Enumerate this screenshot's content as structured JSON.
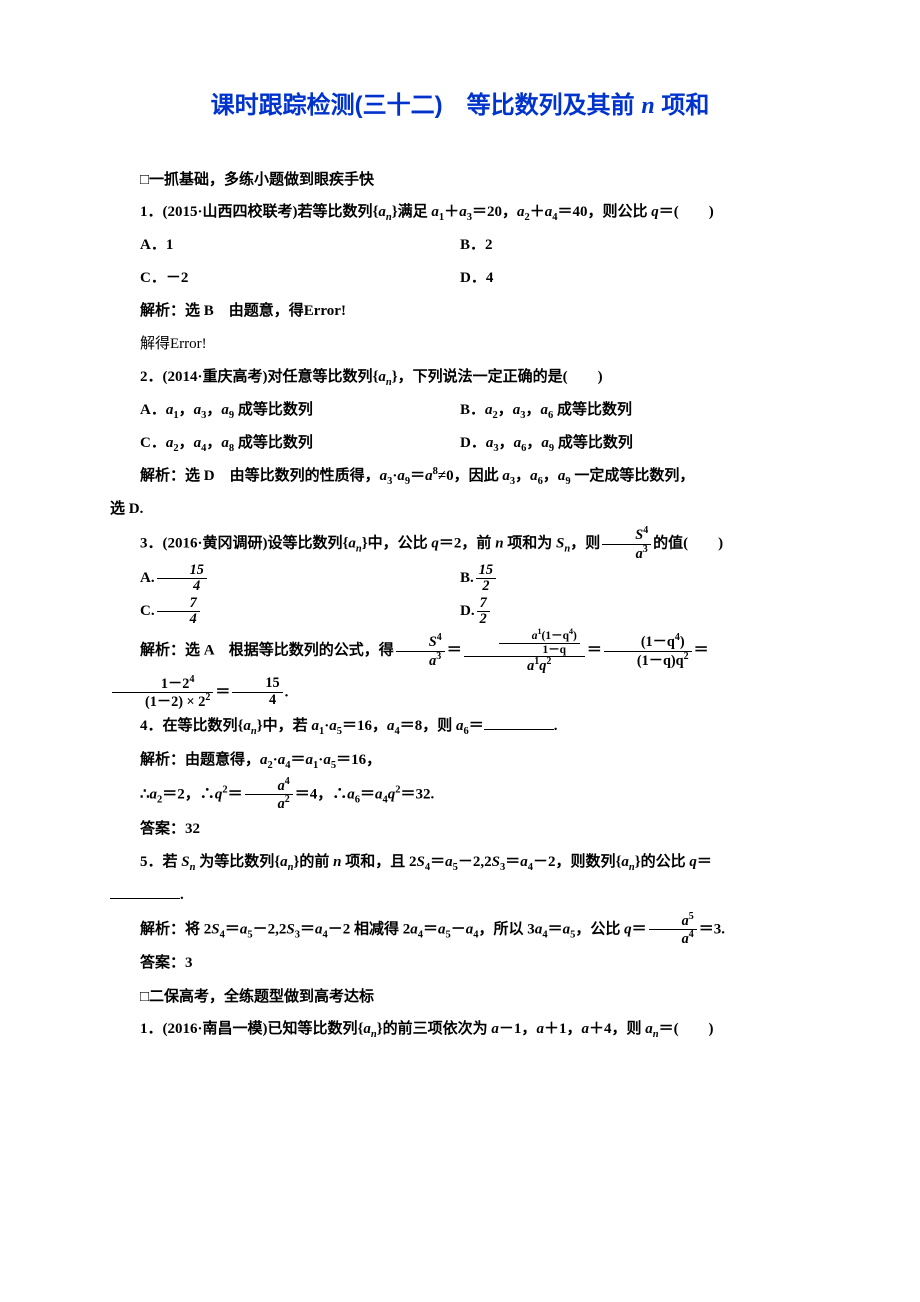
{
  "title_prefix": "课时跟踪检测(三十二)　等比数列及其前 ",
  "title_var": "n",
  "title_suffix": " 项和",
  "sec1": "□一抓基础，多练小题做到眼疾手快",
  "q1_stem_a": "1．(2015·山西四校联考)若等比数列{",
  "q1_stem_b": "}满足 ",
  "q1_stem_c": "＝20，",
  "q1_stem_d": "＝40，则公比 ",
  "q1_stem_e": "＝(　　)",
  "q1_optA": "A．1",
  "q1_optB": "B．2",
  "q1_optC": "C．－2",
  "q1_optD": "D．4",
  "q1_sol_a": "解析：选 B　由题意，得Error!",
  "q1_sol_b": "解得Error!",
  "q2_stem_a": "2．(2014·重庆高考)对任意等比数列{",
  "q2_stem_b": "}，下列说法一定正确的是(　　)",
  "q2_optA_a": "A．",
  "q2_optA_b": " 成等比数列",
  "q2_optB_a": "B．",
  "q2_optB_b": " 成等比数列",
  "q2_optC_a": "C．",
  "q2_optC_b": " 成等比数列",
  "q2_optD_a": "D．",
  "q2_optD_b": " 成等比数列",
  "q2_sol_a": "解析：选 D　由等比数列的性质得，",
  "q2_sol_b": "≠0，因此 ",
  "q2_sol_c": " 一定成等比数列，",
  "q2_sol_end": "选 D.",
  "q3_stem_a": "3．(2016·黄冈调研)设等比数列{",
  "q3_stem_b": "}中，公比 ",
  "q3_stem_c": "＝2，前 ",
  "q3_stem_d": " 项和为 ",
  "q3_stem_e": "，则",
  "q3_stem_f": "的值(　　)",
  "q3_optA": "A.",
  "q3_optB": "B.",
  "q3_optC": "C.",
  "q3_optD": "D.",
  "f15": "15",
  "f4": "4",
  "f2": "2",
  "f7": "7",
  "q3_sol_a": "解析：选 A　根据等比数列的公式，得",
  "q4_stem_a": "4．在等比数列{",
  "q4_stem_b": "}中，若 ",
  "q4_stem_c": "＝16，",
  "q4_stem_d": "＝8，则 ",
  "q4_stem_e": "＝",
  "q4_sol_a": "解析：由题意得，",
  "q4_sol_b": "＝16，",
  "q4_sol2_a": "∴",
  "q4_sol2_b": "＝2，∴",
  "q4_sol2_c": "＝4，∴",
  "q4_sol2_d": "＝32.",
  "q4_ans": "答案：32",
  "q5_stem_a": "5．若 ",
  "q5_stem_b": " 为等比数列{",
  "q5_stem_c": "}的前 ",
  "q5_stem_d": " 项和，且 2",
  "q5_stem_e": "－2,2",
  "q5_stem_f": "－2，则数列{",
  "q5_stem_g": "}的公比 ",
  "q5_stem_h": "＝",
  "q5_sol_a": "解析：将 2",
  "q5_sol_b": "－2,2",
  "q5_sol_c": "－2 相减得 2",
  "q5_sol_d": "，所以 3",
  "q5_sol_e": "，公比 ",
  "q5_sol_f": "＝3.",
  "q5_ans": "答案：3",
  "sec2": "□二保高考，全练题型做到高考达标",
  "q6_stem_a": "1．(2016·南昌一模)已知等比数列{",
  "q6_stem_b": "}的前三项依次为 ",
  "q6_stem_c": "－1，",
  "q6_stem_d": "＋1，",
  "q6_stem_e": "＋4，则 ",
  "q6_stem_f": "＝(　　)",
  "sym_an": "a",
  "sym_n": "n",
  "sym_a1": "a",
  "sub1": "1",
  "sym_a2": "a",
  "sub2": "2",
  "sym_a3": "a",
  "sub3": "3",
  "sym_a4": "a",
  "sub4": "4",
  "sym_a5": "a",
  "sub5": "5",
  "sym_a6": "a",
  "sub6": "6",
  "sym_a8": "a",
  "sub8": "8",
  "sym_a9": "a",
  "sub9": "9",
  "sym_q": "q",
  "sym_S": "S",
  "sup4": "4",
  "sup8": "8",
  "sup2": "2",
  "sup5": "5",
  "frac_a1_1mq4": "a",
  "one_minus_q4": "(1－q",
  "close_p": ")",
  "one_minus_q": "1－q",
  "a1q2": "a",
  "q2txt": "q",
  "one_m_q4_p": "(1－q",
  "one_m_q_q2": "(1－q)q",
  "one_m_24": "1－2",
  "one_m_2_22": "(1－2) × 2",
  "eq": "＝",
  "dot": "·",
  "comma": "，",
  "period": "."
}
